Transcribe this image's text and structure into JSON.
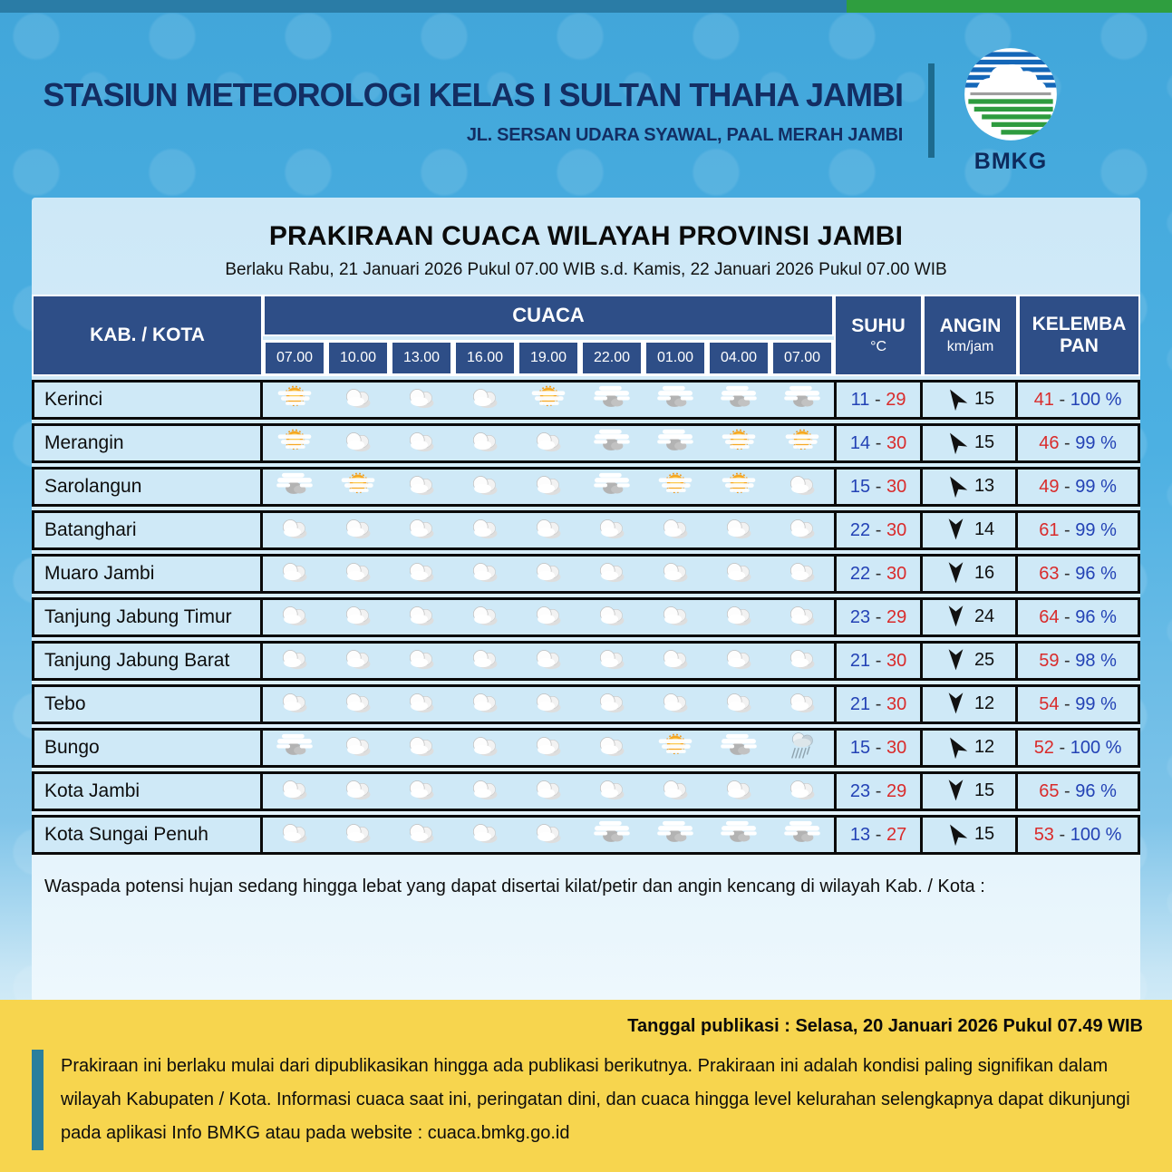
{
  "header": {
    "station": "STASIUN METEOROLOGI KELAS I SULTAN THAHA JAMBI",
    "address": "JL. SERSAN UDARA SYAWAL, PAAL MERAH JAMBI",
    "logo_label": "BMKG"
  },
  "panel": {
    "title": "PRAKIRAAN CUACA WILAYAH PROVINSI JAMBI",
    "subtitle": "Berlaku Rabu, 21 Januari 2026 Pukul 07.00 WIB s.d. Kamis, 22 Januari 2026 Pukul 07.00 WIB"
  },
  "table": {
    "col_region": "KAB. / KOTA",
    "col_weather": "CUACA",
    "col_temp": "SUHU",
    "col_temp_unit": "°C",
    "col_wind": "ANGIN",
    "col_wind_unit": "km/jam",
    "col_humidity": "KELEMBA PAN",
    "times": [
      "07.00",
      "10.00",
      "13.00",
      "16.00",
      "19.00",
      "22.00",
      "01.00",
      "04.00",
      "07.00"
    ],
    "rows": [
      {
        "name": "Kerinci",
        "icons": [
          "sun-cloud",
          "cloud",
          "cloud",
          "cloud",
          "sun-cloud",
          "cloud-gray",
          "cloud-gray",
          "cloud-gray",
          "cloud-gray"
        ],
        "temp_min": 11,
        "temp_max": 29,
        "wind_dir": "up",
        "wind": 15,
        "hum_min": 41,
        "hum_max": 100
      },
      {
        "name": "Merangin",
        "icons": [
          "sun-cloud",
          "cloud",
          "cloud",
          "cloud",
          "cloud",
          "cloud-gray",
          "cloud-gray",
          "sun-cloud",
          "sun-cloud"
        ],
        "temp_min": 14,
        "temp_max": 30,
        "wind_dir": "up",
        "wind": 15,
        "hum_min": 46,
        "hum_max": 99
      },
      {
        "name": "Sarolangun",
        "icons": [
          "cloud-gray",
          "sun-cloud",
          "cloud",
          "cloud",
          "cloud",
          "cloud-gray",
          "sun-cloud",
          "sun-cloud",
          "cloud"
        ],
        "temp_min": 15,
        "temp_max": 30,
        "wind_dir": "up",
        "wind": 13,
        "hum_min": 49,
        "hum_max": 99
      },
      {
        "name": "Batanghari",
        "icons": [
          "cloud",
          "cloud",
          "cloud",
          "cloud",
          "cloud",
          "cloud",
          "cloud",
          "cloud",
          "cloud"
        ],
        "temp_min": 22,
        "temp_max": 30,
        "wind_dir": "down",
        "wind": 14,
        "hum_min": 61,
        "hum_max": 99
      },
      {
        "name": "Muaro Jambi",
        "icons": [
          "cloud",
          "cloud",
          "cloud",
          "cloud",
          "cloud",
          "cloud",
          "cloud",
          "cloud",
          "cloud"
        ],
        "temp_min": 22,
        "temp_max": 30,
        "wind_dir": "down",
        "wind": 16,
        "hum_min": 63,
        "hum_max": 96
      },
      {
        "name": "Tanjung Jabung Timur",
        "icons": [
          "cloud",
          "cloud",
          "cloud",
          "cloud",
          "cloud",
          "cloud",
          "cloud",
          "cloud",
          "cloud"
        ],
        "temp_min": 23,
        "temp_max": 29,
        "wind_dir": "down",
        "wind": 24,
        "hum_min": 64,
        "hum_max": 96
      },
      {
        "name": "Tanjung Jabung Barat",
        "icons": [
          "cloud",
          "cloud",
          "cloud",
          "cloud",
          "cloud",
          "cloud",
          "cloud",
          "cloud",
          "cloud"
        ],
        "temp_min": 21,
        "temp_max": 30,
        "wind_dir": "down",
        "wind": 25,
        "hum_min": 59,
        "hum_max": 98
      },
      {
        "name": "Tebo",
        "icons": [
          "cloud",
          "cloud",
          "cloud",
          "cloud",
          "cloud",
          "cloud",
          "cloud",
          "cloud",
          "cloud"
        ],
        "temp_min": 21,
        "temp_max": 30,
        "wind_dir": "down",
        "wind": 12,
        "hum_min": 54,
        "hum_max": 99
      },
      {
        "name": "Bungo",
        "icons": [
          "cloud-gray",
          "cloud",
          "cloud",
          "cloud",
          "cloud",
          "cloud",
          "sun-cloud",
          "cloud-gray",
          "rain"
        ],
        "temp_min": 15,
        "temp_max": 30,
        "wind_dir": "up",
        "wind": 12,
        "hum_min": 52,
        "hum_max": 100
      },
      {
        "name": "Kota Jambi",
        "icons": [
          "cloud",
          "cloud",
          "cloud",
          "cloud",
          "cloud",
          "cloud",
          "cloud",
          "cloud",
          "cloud"
        ],
        "temp_min": 23,
        "temp_max": 29,
        "wind_dir": "down",
        "wind": 15,
        "hum_min": 65,
        "hum_max": 96
      },
      {
        "name": "Kota Sungai Penuh",
        "icons": [
          "cloud",
          "cloud",
          "cloud",
          "cloud",
          "cloud",
          "cloud-gray",
          "cloud-gray",
          "cloud-gray",
          "cloud-gray"
        ],
        "temp_min": 13,
        "temp_max": 27,
        "wind_dir": "up",
        "wind": 15,
        "hum_min": 53,
        "hum_max": 100
      }
    ]
  },
  "warning": "Waspada potensi hujan sedang hingga lebat yang dapat disertai kilat/petir dan angin kencang di wilayah Kab. / Kota :",
  "footer": {
    "published": "Tanggal publikasi : Selasa, 20 Januari 2026 Pukul 07.49 WIB",
    "note": "Prakiraan ini berlaku mulai dari dipublikasikan hingga ada publikasi berikutnya. Prakiraan ini adalah kondisi paling signifikan dalam wilayah Kabupaten / Kota. Informasi cuaca saat ini, peringatan dini, dan cuaca hingga level kelurahan selengkapnya dapat dikunjungi pada aplikasi Info BMKG atau pada website : cuaca.bmkg.go.id"
  },
  "colors": {
    "header_navy": "#2e4e87",
    "value_blue": "#2342b5",
    "value_red": "#d92b2b",
    "footer_yellow": "#f7d54e",
    "accent_teal": "#2a7f9d",
    "topbar_blue": "#2a7ca6",
    "topbar_green": "#2f9e3f",
    "background_blue": "#4aaede"
  }
}
